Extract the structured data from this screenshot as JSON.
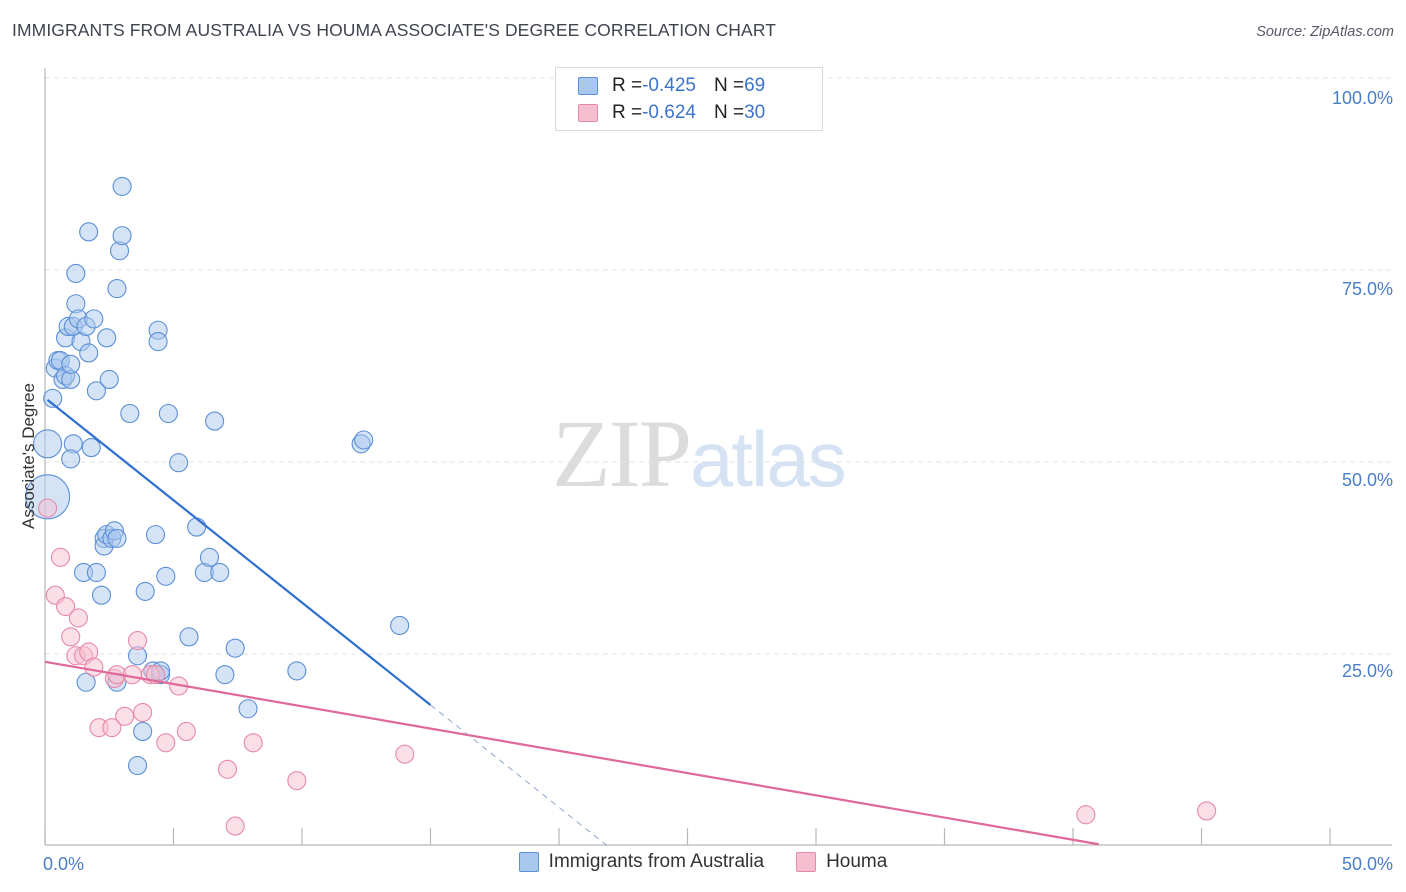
{
  "header": {
    "title": "IMMIGRANTS FROM AUSTRALIA VS HOUMA ASSOCIATE'S DEGREE CORRELATION CHART",
    "source": "Source: ZipAtlas.com"
  },
  "watermark": {
    "zip": "ZIP",
    "atlas": "atlas"
  },
  "legend": {
    "rows": [
      {
        "r_label": "R = ",
        "r_value": "-0.425",
        "n_label": "N = ",
        "n_value": "69"
      },
      {
        "r_label": "R = ",
        "r_value": "-0.624",
        "n_label": "N = ",
        "n_value": "30"
      }
    ]
  },
  "colors": {
    "blue_fill": "#aac8ee",
    "blue_stroke": "#5b8fd6",
    "blue_line": "#2f6fcf",
    "pink_fill": "#f5bfd0",
    "pink_stroke": "#e58aa8",
    "pink_line": "#e0689a"
  },
  "chart_data": {
    "type": "scatter",
    "title": "IMMIGRANTS FROM AUSTRALIA VS HOUMA ASSOCIATE'S DEGREE CORRELATION CHART",
    "xlabel": "",
    "ylabel": "Associate's Degree",
    "xlim": [
      0,
      50
    ],
    "ylim": [
      0,
      100
    ],
    "x_ticks": [
      "0.0%",
      "50.0%"
    ],
    "y_ticks": [
      "25.0%",
      "50.0%",
      "75.0%",
      "100.0%"
    ],
    "y_tick_values": [
      25,
      50,
      75,
      100
    ],
    "grid": true,
    "legend_position": "top-center",
    "series": [
      {
        "name": "Immigrants from Australia",
        "r": -0.425,
        "n": 69,
        "trend": {
          "x1": 0.1,
          "y1": 58.8,
          "x2": 15,
          "y2": 18.5,
          "dash_to_x": 22
        },
        "points": [
          [
            0.1,
            46,
            22
          ],
          [
            0.1,
            53,
            14
          ],
          [
            0.3,
            59,
            9
          ],
          [
            0.4,
            63,
            9
          ],
          [
            0.5,
            64,
            9
          ],
          [
            0.6,
            64,
            9
          ],
          [
            0.7,
            61.5,
            9
          ],
          [
            0.8,
            67,
            9
          ],
          [
            0.8,
            62,
            9
          ],
          [
            0.9,
            68.5,
            9
          ],
          [
            1.0,
            61.5,
            9
          ],
          [
            1.0,
            63.5,
            9
          ],
          [
            1.1,
            53,
            9
          ],
          [
            1.1,
            68.5,
            9
          ],
          [
            1.0,
            51,
            9
          ],
          [
            1.2,
            75.5,
            9
          ],
          [
            1.2,
            71.5,
            9
          ],
          [
            1.3,
            69.5,
            9
          ],
          [
            1.4,
            66.5,
            9
          ],
          [
            1.5,
            36,
            9
          ],
          [
            1.6,
            68.5,
            9
          ],
          [
            1.6,
            21.5,
            9
          ],
          [
            1.7,
            81,
            9
          ],
          [
            1.7,
            65,
            9
          ],
          [
            1.8,
            52.5,
            9
          ],
          [
            1.9,
            69.5,
            9
          ],
          [
            2.0,
            36,
            9
          ],
          [
            2.0,
            60,
            9
          ],
          [
            2.2,
            33,
            9
          ],
          [
            2.3,
            40.5,
            9
          ],
          [
            2.3,
            39.5,
            9
          ],
          [
            2.4,
            41,
            9
          ],
          [
            2.4,
            67,
            9
          ],
          [
            2.5,
            61.5,
            9
          ],
          [
            2.6,
            40.5,
            9
          ],
          [
            2.7,
            41.5,
            9
          ],
          [
            2.8,
            21.5,
            9
          ],
          [
            2.8,
            40.5,
            9
          ],
          [
            2.8,
            73.5,
            9
          ],
          [
            2.9,
            78.5,
            9
          ],
          [
            3.0,
            80.5,
            9
          ],
          [
            3.0,
            87,
            9
          ],
          [
            3.3,
            57,
            9
          ],
          [
            3.6,
            25,
            9
          ],
          [
            3.6,
            10.5,
            9
          ],
          [
            3.8,
            15,
            9
          ],
          [
            3.9,
            33.5,
            9
          ],
          [
            4.2,
            23,
            9
          ],
          [
            4.3,
            41,
            9
          ],
          [
            4.4,
            68,
            9
          ],
          [
            4.4,
            66.5,
            9
          ],
          [
            4.5,
            22.5,
            9
          ],
          [
            4.5,
            23,
            9
          ],
          [
            4.7,
            35.5,
            9
          ],
          [
            4.8,
            57,
            9
          ],
          [
            5.2,
            50.5,
            9
          ],
          [
            5.6,
            27.5,
            9
          ],
          [
            5.9,
            42,
            9
          ],
          [
            6.2,
            36,
            9
          ],
          [
            6.4,
            38,
            9
          ],
          [
            6.6,
            56,
            9
          ],
          [
            6.8,
            36,
            9
          ],
          [
            7.0,
            22.5,
            9
          ],
          [
            7.4,
            26,
            9
          ],
          [
            7.9,
            18,
            9
          ],
          [
            9.8,
            23,
            9
          ],
          [
            12.3,
            53,
            9
          ],
          [
            12.4,
            53.5,
            9
          ],
          [
            13.8,
            29,
            9
          ]
        ]
      },
      {
        "name": "Houma",
        "r": -0.624,
        "n": 30,
        "trend": {
          "x1": 0,
          "y1": 24.2,
          "x2": 41,
          "y2": 0.1
        },
        "points": [
          [
            0.1,
            44.5,
            9
          ],
          [
            0.4,
            33,
            9
          ],
          [
            0.6,
            38,
            9
          ],
          [
            0.8,
            31.5,
            9
          ],
          [
            1.0,
            27.5,
            9
          ],
          [
            1.2,
            25,
            9
          ],
          [
            1.3,
            30,
            9
          ],
          [
            1.5,
            25,
            9
          ],
          [
            1.7,
            25.5,
            9
          ],
          [
            1.9,
            23.5,
            9
          ],
          [
            2.1,
            15.5,
            9
          ],
          [
            2.6,
            15.5,
            9
          ],
          [
            2.7,
            22,
            9
          ],
          [
            2.8,
            22.5,
            9
          ],
          [
            3.1,
            17,
            9
          ],
          [
            3.4,
            22.5,
            9
          ],
          [
            3.6,
            27,
            9
          ],
          [
            3.8,
            17.5,
            9
          ],
          [
            4.1,
            22.5,
            9
          ],
          [
            4.3,
            22.5,
            9
          ],
          [
            4.7,
            13.5,
            9
          ],
          [
            5.2,
            21,
            9
          ],
          [
            5.5,
            15,
            9
          ],
          [
            7.1,
            10,
            9
          ],
          [
            7.4,
            2.5,
            9
          ],
          [
            8.1,
            13.5,
            9
          ],
          [
            9.8,
            8.5,
            9
          ],
          [
            14.0,
            12,
            9
          ],
          [
            40.5,
            4,
            9
          ],
          [
            45.2,
            4.5,
            9
          ]
        ]
      }
    ]
  }
}
